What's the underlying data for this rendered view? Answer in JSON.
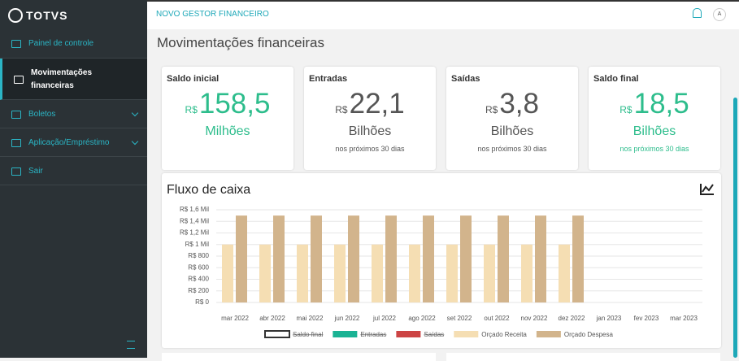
{
  "sidebar": {
    "brand": "TOTVS",
    "menu": [
      {
        "label": "Painel de controle"
      },
      {
        "label": "Movimentações financeiras",
        "active": true
      },
      {
        "label": "Boletos",
        "expandable": true
      },
      {
        "label": "Aplicação/Empréstimo",
        "expandable": true
      },
      {
        "label": "Sair"
      }
    ]
  },
  "header": {
    "app_title": "NOVO GESTOR FINANCEIRO",
    "avatar": "A"
  },
  "page_title": "Movimentações financeiras",
  "cards": [
    {
      "title": "Saldo inicial",
      "currency": "R$",
      "value": "158,5",
      "unit": "Milhões",
      "color": "#2dbd8c"
    },
    {
      "title": "Entradas",
      "currency": "R$",
      "value": "22,1",
      "unit": "Bilhões",
      "note": "nos próximos 30 dias",
      "color": "#555555"
    },
    {
      "title": "Saídas",
      "currency": "R$",
      "value": "3,8",
      "unit": "Bilhões",
      "note": "nos próximos 30 dias",
      "color": "#555555"
    },
    {
      "title": "Saldo final",
      "currency": "R$",
      "value": "18,5",
      "unit": "Bilhões",
      "note": "nos próximos 30 dias",
      "color": "#2dbd8c"
    }
  ],
  "chart_data": {
    "type": "bar",
    "title": "Fluxo de caixa",
    "categories": [
      "mar 2022",
      "abr 2022",
      "mai 2022",
      "jun 2022",
      "jul 2022",
      "ago 2022",
      "set 2022",
      "out 2022",
      "nov 2022",
      "dez 2022",
      "jan 2023",
      "fev 2023",
      "mar 2023"
    ],
    "series": [
      {
        "name": "Saldo final",
        "color": "#ffffff",
        "hidden": true,
        "values": [
          null,
          null,
          null,
          null,
          null,
          null,
          null,
          null,
          null,
          null,
          null,
          null,
          null
        ]
      },
      {
        "name": "Entradas",
        "color": "#1ab394",
        "hidden": true,
        "values": [
          null,
          null,
          null,
          null,
          null,
          null,
          null,
          null,
          null,
          null,
          null,
          null,
          null
        ]
      },
      {
        "name": "Saídas",
        "color": "#cc4444",
        "hidden": true,
        "values": [
          null,
          null,
          null,
          null,
          null,
          null,
          null,
          null,
          null,
          null,
          null,
          null,
          null
        ]
      },
      {
        "name": "Orçado Receita",
        "color": "#f5deb3",
        "values": [
          1000000,
          1000000,
          1000000,
          1000000,
          1000000,
          1000000,
          1000000,
          1000000,
          1000000,
          1000000,
          null,
          null,
          null
        ]
      },
      {
        "name": "Orçado Despesa",
        "color": "#d2b48c",
        "values": [
          1500000,
          1500000,
          1500000,
          1500000,
          1500000,
          1500000,
          1500000,
          1500000,
          1500000,
          1500000,
          null,
          null,
          null
        ]
      }
    ],
    "ylim": [
      0,
      1600000
    ],
    "yticks": [
      {
        "value": 0,
        "label": "R$ 0"
      },
      {
        "value": 200000,
        "label": "R$ 200"
      },
      {
        "value": 400000,
        "label": "R$ 400"
      },
      {
        "value": 600000,
        "label": "R$ 600"
      },
      {
        "value": 800000,
        "label": "R$ 800"
      },
      {
        "value": 1000000,
        "label": "R$ 1 Mil"
      },
      {
        "value": 1200000,
        "label": "R$ 1,2 Mil"
      },
      {
        "value": 1400000,
        "label": "R$ 1,4 Mil"
      },
      {
        "value": 1600000,
        "label": "R$ 1,6 Mil"
      }
    ],
    "grid": true,
    "legend": "bottom"
  }
}
